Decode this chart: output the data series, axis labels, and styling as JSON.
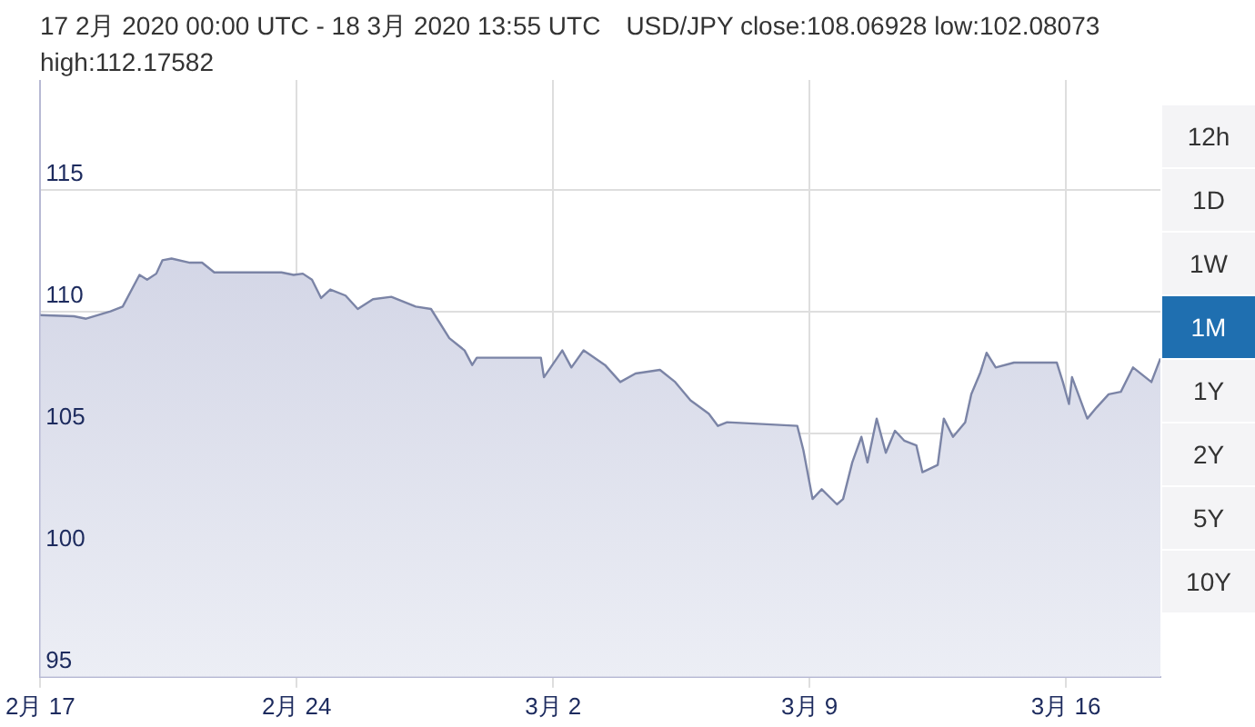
{
  "chart_data": {
    "type": "area",
    "title": "17 2月 2020 00:00 UTC - 18 3月 2020 13:55 UTC",
    "subtitle": "USD/JPY close:108.06928 low:102.08073 high:112.17582",
    "annotations": [
      "12h",
      "1D",
      "1W",
      "1M",
      "1Y",
      "2Y",
      "5Y",
      "10Y"
    ],
    "x": [
      "2020-02-17T00:00",
      "2020-02-17T22:00",
      "2020-02-18T06:00",
      "2020-02-18T22:00",
      "2020-02-19T06:00",
      "2020-02-19T17:00",
      "2020-02-19T22:00",
      "2020-02-20T04:00",
      "2020-02-20T08:00",
      "2020-02-20T14:00",
      "2020-02-21T02:00",
      "2020-02-21T10:00",
      "2020-02-21T18:00",
      "2020-02-23T14:00",
      "2020-02-23T22:00",
      "2020-02-24T04:00",
      "2020-02-24T10:00",
      "2020-02-24T16:00",
      "2020-02-24T22:00",
      "2020-02-25T08:00",
      "2020-02-25T16:00",
      "2020-02-26T02:00",
      "2020-02-26T14:00",
      "2020-02-27T06:00",
      "2020-02-27T16:00",
      "2020-02-28T04:00",
      "2020-02-28T14:00",
      "2020-02-28T19:00",
      "2020-02-28T22:00",
      "2020-03-01T16:00",
      "2020-03-01T18:00",
      "2020-03-02T06:00",
      "2020-03-02T12:00",
      "2020-03-02T20:00",
      "2020-03-03T10:00",
      "2020-03-03T20:00",
      "2020-03-04T06:00",
      "2020-03-04T22:00",
      "2020-03-05T08:00",
      "2020-03-05T18:00",
      "2020-03-06T06:00",
      "2020-03-06T12:00",
      "2020-03-06T18:00",
      "2020-03-08T16:00",
      "2020-03-08T20:00",
      "2020-03-09T02:00",
      "2020-03-09T08:00",
      "2020-03-09T18:00",
      "2020-03-09T22:00",
      "2020-03-10T04:00",
      "2020-03-10T10:00",
      "2020-03-10T14:00",
      "2020-03-10T20:00",
      "2020-03-11T02:00",
      "2020-03-11T08:00",
      "2020-03-11T14:00",
      "2020-03-11T22:00",
      "2020-03-12T02:00",
      "2020-03-12T12:00",
      "2020-03-12T16:00",
      "2020-03-12T22:00",
      "2020-03-13T06:00",
      "2020-03-13T10:00",
      "2020-03-13T16:00",
      "2020-03-13T20:00",
      "2020-03-14T02:00",
      "2020-03-14T14:00",
      "2020-03-15T18:00",
      "2020-03-15T22:00",
      "2020-03-16T02:00",
      "2020-03-16T04:00",
      "2020-03-16T14:00",
      "2020-03-16T20:00",
      "2020-03-17T04:00",
      "2020-03-17T12:00",
      "2020-03-17T20:00",
      "2020-03-18T08:00",
      "2020-03-18T13:55"
    ],
    "series": [
      {
        "color": "#7b84a6",
        "values": [
          109.85,
          109.8,
          109.7,
          110.0,
          110.2,
          111.5,
          111.3,
          111.55,
          112.1,
          112.17,
          112.0,
          112.0,
          111.6,
          111.6,
          111.5,
          111.55,
          111.3,
          110.55,
          110.9,
          110.65,
          110.1,
          110.5,
          110.6,
          110.2,
          110.1,
          108.9,
          108.4,
          107.8,
          108.1,
          108.1,
          107.3,
          108.4,
          107.7,
          108.4,
          107.8,
          107.1,
          107.45,
          107.6,
          107.1,
          106.35,
          105.8,
          105.3,
          105.45,
          105.3,
          104.3,
          102.3,
          102.7,
          102.08,
          102.3,
          103.8,
          104.85,
          103.8,
          105.6,
          104.2,
          105.1,
          104.7,
          104.5,
          103.4,
          103.7,
          105.6,
          104.85,
          105.45,
          106.6,
          107.5,
          108.3,
          107.7,
          107.9,
          107.9,
          107.1,
          106.2,
          107.3,
          105.6,
          106.05,
          106.6,
          106.7,
          107.7,
          107.1,
          108.07
        ]
      }
    ],
    "xlim": [
      "2020-02-17T00:00",
      "2020-03-18T13:55"
    ],
    "xticks": [
      {
        "value": "2020-02-17",
        "label": "2月 17"
      },
      {
        "value": "2020-02-24",
        "label": "2月 24"
      },
      {
        "value": "2020-03-02",
        "label": "3月 2"
      },
      {
        "value": "2020-03-09",
        "label": "3月 9"
      },
      {
        "value": "2020-03-16",
        "label": "3月 16"
      }
    ],
    "ylim": [
      95,
      119.5
    ],
    "yticks": [
      95,
      100,
      105,
      110,
      115
    ],
    "grid": true,
    "marker": "none",
    "line_style": "solid"
  }
}
